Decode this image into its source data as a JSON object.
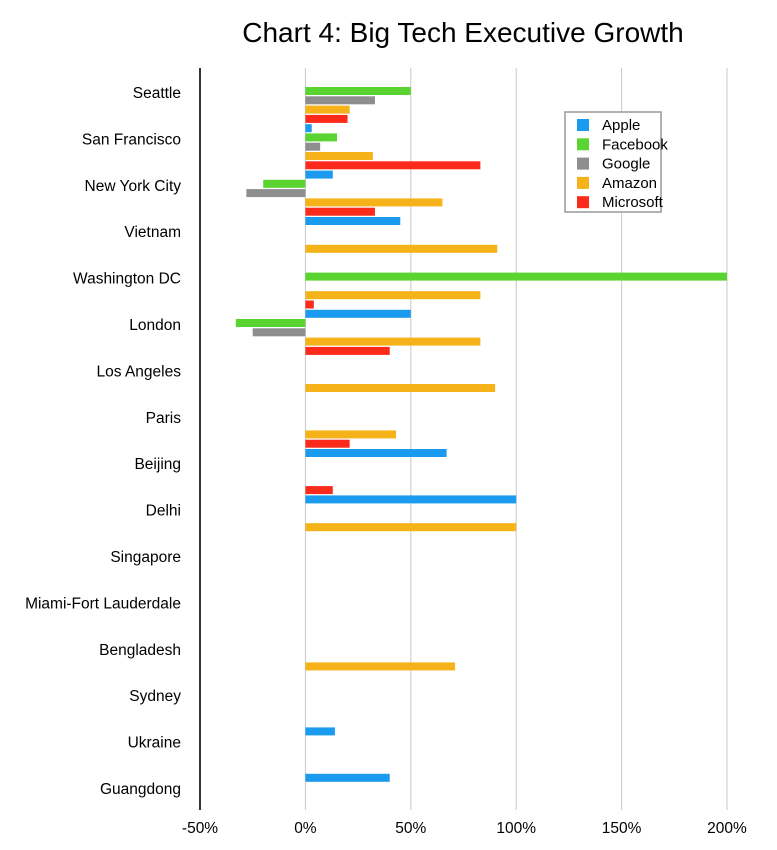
{
  "chart_data": {
    "type": "bar",
    "orientation": "horizontal",
    "title": "Chart 4: Big Tech Executive Growth",
    "xlabel": "",
    "ylabel": "",
    "xlim": [
      -50,
      200
    ],
    "x_ticks": [
      -50,
      0,
      50,
      100,
      150,
      200
    ],
    "x_tick_labels": [
      "-50%",
      "0%",
      "50%",
      "100%",
      "150%",
      "200%"
    ],
    "grid": true,
    "legend_position": "top-right",
    "categories": [
      "Seattle",
      "San Francisco",
      "New York City",
      "Vietnam",
      "Washington DC",
      "London",
      "Los Angeles",
      "Paris",
      "Beijing",
      "Delhi",
      "Singapore",
      "Miami-Fort Lauderdale",
      "Bengladesh",
      "Sydney",
      "Ukraine",
      "Guangdong"
    ],
    "series": [
      {
        "name": "Apple",
        "color": "#1a9bf0",
        "values": [
          3,
          13,
          45,
          null,
          50,
          null,
          null,
          67,
          100,
          null,
          null,
          null,
          null,
          14,
          40,
          null
        ]
      },
      {
        "name": "Facebook",
        "color": "#5ad430",
        "values": [
          50,
          15,
          -20,
          null,
          200,
          -33,
          null,
          null,
          null,
          null,
          null,
          null,
          null,
          null,
          null,
          null
        ]
      },
      {
        "name": "Google",
        "color": "#8e8e8e",
        "values": [
          33,
          7,
          -28,
          null,
          null,
          -25,
          null,
          null,
          null,
          null,
          null,
          null,
          null,
          null,
          null,
          null
        ]
      },
      {
        "name": "Amazon",
        "color": "#f5b219",
        "values": [
          21,
          32,
          65,
          91,
          83,
          83,
          90,
          43,
          null,
          100,
          null,
          null,
          71,
          null,
          null,
          null
        ]
      },
      {
        "name": "Microsoft",
        "color": "#fb2a1a",
        "values": [
          20,
          83,
          33,
          null,
          4,
          40,
          null,
          21,
          13,
          null,
          null,
          null,
          null,
          null,
          null,
          null
        ]
      }
    ]
  }
}
